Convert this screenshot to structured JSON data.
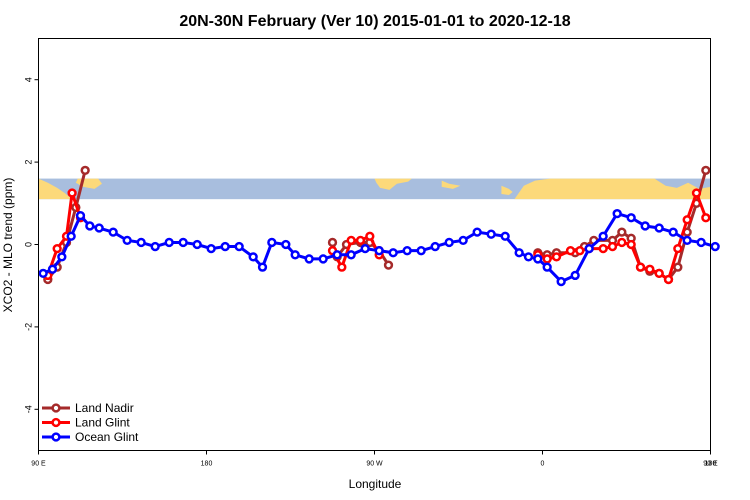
{
  "chart_data": {
    "type": "line",
    "title": "20N-30N February (Ver 10)   2015-01-01 to 2020-12-18",
    "xlabel": "Longitude",
    "ylabel": "XCO2 - MLO trend (ppm)",
    "xlim": [
      90,
      450
    ],
    "ylim": [
      -5,
      5
    ],
    "x_ticks": [
      {
        "value": 90,
        "label": "90 E"
      },
      {
        "value": 180,
        "label": "180"
      },
      {
        "value": 270,
        "label": "90 W"
      },
      {
        "value": 360,
        "label": "0"
      },
      {
        "value": 450,
        "label": "90 E"
      },
      {
        "value": 540,
        "label": "180"
      }
    ],
    "y_ticks": [
      {
        "value": -4,
        "label": "-4"
      },
      {
        "value": -2,
        "label": "-2"
      },
      {
        "value": 0,
        "label": "0"
      },
      {
        "value": 2,
        "label": "2"
      },
      {
        "value": 4,
        "label": "4"
      }
    ],
    "map_strip": {
      "y_min": 1.1,
      "y_max": 1.6,
      "ocean_color": "#a8bede",
      "land_color": "#fcd97a"
    },
    "legend_position": "bottom-left",
    "series": [
      {
        "name": "Land Nadir",
        "color": "#a52a2a",
        "segments": [
          [
            [
              95,
              -0.85
            ],
            [
              100,
              -0.55
            ],
            [
              105,
              0.05
            ],
            [
              110,
              0.9
            ],
            [
              115,
              1.8
            ]
          ],
          [
            [
              247.5,
              0.05
            ],
            [
              250,
              -0.3
            ],
            [
              255,
              0.0
            ],
            [
              262.5,
              0.05
            ],
            [
              267.5,
              0.05
            ],
            [
              272.5,
              -0.15
            ],
            [
              277.5,
              -0.5
            ]
          ],
          [
            [
              357.5,
              -0.2
            ],
            [
              362.5,
              -0.25
            ],
            [
              367.5,
              -0.2
            ],
            [
              377.5,
              -0.2
            ],
            [
              382.5,
              -0.05
            ],
            [
              387.5,
              0.1
            ],
            [
              397.5,
              0.1
            ],
            [
              402.5,
              0.3
            ],
            [
              407.5,
              0.15
            ],
            [
              412.5,
              -0.55
            ],
            [
              417.5,
              -0.65
            ],
            [
              422.5,
              -0.7
            ],
            [
              427.5,
              -0.85
            ],
            [
              432.5,
              -0.55
            ],
            [
              437.5,
              0.3
            ],
            [
              442.5,
              1.0
            ],
            [
              447.5,
              1.8
            ]
          ]
        ]
      },
      {
        "name": "Land Glint",
        "color": "#ff0000",
        "segments": [
          [
            [
              95,
              -0.75
            ],
            [
              100,
              -0.1
            ],
            [
              105,
              0.2
            ],
            [
              108,
              1.25
            ],
            [
              112.5,
              0.65
            ]
          ],
          [
            [
              247.5,
              -0.15
            ],
            [
              252.5,
              -0.55
            ],
            [
              257.5,
              0.1
            ],
            [
              262.5,
              0.1
            ],
            [
              267.5,
              0.2
            ],
            [
              272.5,
              -0.25
            ]
          ],
          [
            [
              357.5,
              -0.25
            ],
            [
              362.5,
              -0.35
            ],
            [
              367.5,
              -0.3
            ],
            [
              375,
              -0.15
            ],
            [
              380,
              -0.15
            ],
            [
              385,
              -0.1
            ],
            [
              392.5,
              -0.1
            ],
            [
              397.5,
              -0.05
            ],
            [
              402.5,
              0.05
            ],
            [
              407.5,
              0.0
            ],
            [
              412.5,
              -0.55
            ],
            [
              417.5,
              -0.6
            ],
            [
              422.5,
              -0.7
            ],
            [
              427.5,
              -0.85
            ],
            [
              432.5,
              -0.1
            ],
            [
              437.5,
              0.6
            ],
            [
              442.5,
              1.25
            ],
            [
              447.5,
              0.65
            ]
          ]
        ]
      },
      {
        "name": "Ocean Glint",
        "color": "#0000ff",
        "segments": [
          [
            [
              92.5,
              -0.7
            ],
            [
              97.5,
              -0.6
            ],
            [
              102.5,
              -0.3
            ],
            [
              107.5,
              0.2
            ],
            [
              112.5,
              0.7
            ],
            [
              117.5,
              0.45
            ],
            [
              122.5,
              0.4
            ],
            [
              130,
              0.3
            ],
            [
              137.5,
              0.1
            ],
            [
              145,
              0.05
            ],
            [
              152.5,
              -0.05
            ],
            [
              160,
              0.05
            ],
            [
              167.5,
              0.05
            ],
            [
              175,
              0.0
            ],
            [
              182.5,
              -0.1
            ],
            [
              190,
              -0.05
            ],
            [
              197.5,
              -0.05
            ],
            [
              205,
              -0.3
            ],
            [
              210,
              -0.55
            ],
            [
              215,
              0.05
            ],
            [
              222.5,
              0.0
            ],
            [
              227.5,
              -0.25
            ],
            [
              235,
              -0.35
            ],
            [
              242.5,
              -0.35
            ],
            [
              250,
              -0.25
            ],
            [
              257.5,
              -0.25
            ],
            [
              265,
              -0.1
            ],
            [
              272.5,
              -0.15
            ],
            [
              280,
              -0.2
            ],
            [
              287.5,
              -0.15
            ],
            [
              295,
              -0.15
            ],
            [
              302.5,
              -0.05
            ],
            [
              310,
              0.05
            ],
            [
              317.5,
              0.1
            ],
            [
              325,
              0.3
            ],
            [
              332.5,
              0.25
            ],
            [
              340,
              0.2
            ],
            [
              347.5,
              -0.2
            ],
            [
              352.5,
              -0.3
            ],
            [
              357.5,
              -0.35
            ],
            [
              362.5,
              -0.55
            ],
            [
              370,
              -0.9
            ],
            [
              377.5,
              -0.75
            ],
            [
              385,
              -0.1
            ],
            [
              392.5,
              0.2
            ],
            [
              400,
              0.75
            ],
            [
              407.5,
              0.65
            ],
            [
              415,
              0.45
            ],
            [
              422.5,
              0.4
            ],
            [
              430,
              0.3
            ],
            [
              437.5,
              0.1
            ],
            [
              445,
              0.05
            ],
            [
              452.5,
              -0.05
            ]
          ]
        ]
      }
    ]
  }
}
